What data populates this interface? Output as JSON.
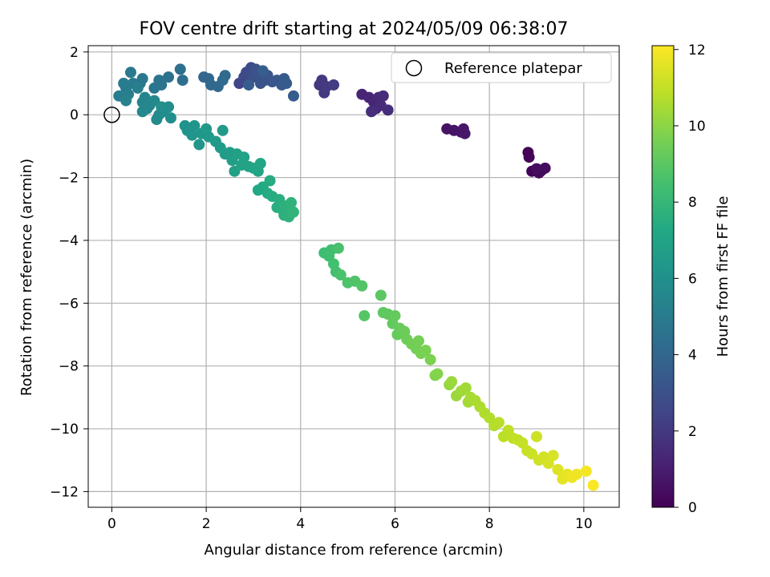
{
  "chart_data": {
    "type": "scatter",
    "title": "FOV centre drift starting at 2024/05/09 06:38:07",
    "xlabel": "Angular distance from reference (arcmin)",
    "ylabel": "Rotation from reference (arcmin)",
    "xlim": [
      -0.5,
      10.75
    ],
    "ylim": [
      -12.5,
      2.2
    ],
    "xticks": [
      0,
      2,
      4,
      6,
      8,
      10
    ],
    "yticks": [
      2,
      0,
      -2,
      -4,
      -6,
      -8,
      -10,
      -12
    ],
    "xtick_labels": [
      "0",
      "2",
      "4",
      "6",
      "8",
      "10"
    ],
    "ytick_labels": [
      "2",
      "0",
      "−2",
      "−4",
      "−6",
      "−8",
      "−10",
      "−12"
    ],
    "grid": true,
    "legend": {
      "placement": "top-right",
      "entries": [
        "Reference platepar"
      ]
    },
    "reference_point": {
      "x": 0,
      "y": 0,
      "name": "Reference platepar"
    },
    "colorbar": {
      "label": "Hours from first FF file",
      "range": [
        0,
        12.1
      ],
      "ticks": [
        0,
        2,
        4,
        6,
        8,
        10,
        12
      ],
      "tick_labels": [
        "0",
        "2",
        "4",
        "6",
        "8",
        "10",
        "12"
      ],
      "colormap": "viridis"
    },
    "points": [
      {
        "x": 8.82,
        "y": -1.2,
        "c": 0.05
      },
      {
        "x": 8.84,
        "y": -1.35,
        "c": 0.1
      },
      {
        "x": 8.9,
        "y": -1.8,
        "c": 0.15
      },
      {
        "x": 8.98,
        "y": -1.75,
        "c": 0.2
      },
      {
        "x": 9.05,
        "y": -1.85,
        "c": 0.25
      },
      {
        "x": 9.1,
        "y": -1.78,
        "c": 0.3
      },
      {
        "x": 9.18,
        "y": -1.7,
        "c": 0.35
      },
      {
        "x": 9.0,
        "y": -1.72,
        "c": 0.4
      },
      {
        "x": 7.1,
        "y": -0.45,
        "c": 0.6
      },
      {
        "x": 7.25,
        "y": -0.5,
        "c": 0.65
      },
      {
        "x": 7.4,
        "y": -0.55,
        "c": 0.7
      },
      {
        "x": 7.45,
        "y": -0.45,
        "c": 0.75
      },
      {
        "x": 7.48,
        "y": -0.6,
        "c": 0.8
      },
      {
        "x": 5.3,
        "y": 0.65,
        "c": 1.2
      },
      {
        "x": 5.45,
        "y": 0.55,
        "c": 1.25
      },
      {
        "x": 5.55,
        "y": 0.4,
        "c": 1.3
      },
      {
        "x": 5.6,
        "y": 0.2,
        "c": 1.35
      },
      {
        "x": 5.65,
        "y": 0.55,
        "c": 1.4
      },
      {
        "x": 5.7,
        "y": 0.3,
        "c": 1.45
      },
      {
        "x": 5.75,
        "y": 0.6,
        "c": 1.5
      },
      {
        "x": 5.85,
        "y": 0.15,
        "c": 1.55
      },
      {
        "x": 5.5,
        "y": 0.1,
        "c": 1.6
      },
      {
        "x": 4.4,
        "y": 0.95,
        "c": 1.9
      },
      {
        "x": 4.45,
        "y": 1.1,
        "c": 1.95
      },
      {
        "x": 4.5,
        "y": 0.7,
        "c": 2.0
      },
      {
        "x": 4.55,
        "y": 0.9,
        "c": 2.05
      },
      {
        "x": 4.7,
        "y": 0.95,
        "c": 2.1
      },
      {
        "x": 2.7,
        "y": 1.0,
        "c": 2.5
      },
      {
        "x": 2.8,
        "y": 1.2,
        "c": 2.6
      },
      {
        "x": 2.85,
        "y": 1.35,
        "c": 2.7
      },
      {
        "x": 2.95,
        "y": 1.5,
        "c": 2.8
      },
      {
        "x": 3.0,
        "y": 1.2,
        "c": 2.9
      },
      {
        "x": 3.05,
        "y": 1.45,
        "c": 3.0
      },
      {
        "x": 3.1,
        "y": 1.3,
        "c": 3.05
      },
      {
        "x": 3.15,
        "y": 1.0,
        "c": 3.1
      },
      {
        "x": 3.25,
        "y": 1.1,
        "c": 3.15
      },
      {
        "x": 3.3,
        "y": 1.25,
        "c": 3.2
      },
      {
        "x": 3.4,
        "y": 1.05,
        "c": 3.25
      },
      {
        "x": 3.5,
        "y": 1.1,
        "c": 3.3
      },
      {
        "x": 3.6,
        "y": 0.95,
        "c": 3.35
      },
      {
        "x": 3.65,
        "y": 1.15,
        "c": 3.4
      },
      {
        "x": 3.7,
        "y": 1.0,
        "c": 3.45
      },
      {
        "x": 3.85,
        "y": 0.6,
        "c": 3.5
      },
      {
        "x": 2.9,
        "y": 0.95,
        "c": 3.55
      },
      {
        "x": 3.2,
        "y": 1.4,
        "c": 3.6
      },
      {
        "x": 1.95,
        "y": 1.2,
        "c": 3.9
      },
      {
        "x": 2.05,
        "y": 1.15,
        "c": 4.0
      },
      {
        "x": 2.1,
        "y": 0.95,
        "c": 4.05
      },
      {
        "x": 2.25,
        "y": 0.9,
        "c": 4.1
      },
      {
        "x": 2.35,
        "y": 1.1,
        "c": 4.15
      },
      {
        "x": 2.4,
        "y": 1.25,
        "c": 4.2
      },
      {
        "x": 1.5,
        "y": 1.1,
        "c": 4.35
      },
      {
        "x": 1.45,
        "y": 1.45,
        "c": 4.4
      },
      {
        "x": 1.2,
        "y": 1.2,
        "c": 4.5
      },
      {
        "x": 1.0,
        "y": 1.1,
        "c": 4.6
      },
      {
        "x": 1.05,
        "y": 0.95,
        "c": 4.65
      },
      {
        "x": 0.9,
        "y": 0.85,
        "c": 4.7
      },
      {
        "x": 0.65,
        "y": 1.15,
        "c": 4.8
      },
      {
        "x": 0.6,
        "y": 1.0,
        "c": 4.85
      },
      {
        "x": 0.4,
        "y": 1.35,
        "c": 4.9
      },
      {
        "x": 0.45,
        "y": 1.0,
        "c": 4.95
      },
      {
        "x": 0.3,
        "y": 0.85,
        "c": 5.0
      },
      {
        "x": 0.25,
        "y": 1.0,
        "c": 5.05
      },
      {
        "x": 0.15,
        "y": 0.6,
        "c": 5.1
      },
      {
        "x": 0.35,
        "y": 0.65,
        "c": 5.15
      },
      {
        "x": 0.55,
        "y": 0.85,
        "c": 5.2
      },
      {
        "x": 0.3,
        "y": 0.45,
        "c": 5.3
      },
      {
        "x": 0.65,
        "y": 0.4,
        "c": 5.4
      },
      {
        "x": 0.7,
        "y": 0.55,
        "c": 5.45
      },
      {
        "x": 0.8,
        "y": 0.3,
        "c": 5.5
      },
      {
        "x": 0.75,
        "y": 0.2,
        "c": 5.55
      },
      {
        "x": 0.65,
        "y": 0.1,
        "c": 5.6
      },
      {
        "x": 0.9,
        "y": 0.45,
        "c": 5.65
      },
      {
        "x": 1.0,
        "y": 0.0,
        "c": 5.7
      },
      {
        "x": 0.95,
        "y": -0.15,
        "c": 5.75
      },
      {
        "x": 1.1,
        "y": 0.1,
        "c": 5.8
      },
      {
        "x": 1.2,
        "y": 0.25,
        "c": 5.85
      },
      {
        "x": 1.25,
        "y": -0.1,
        "c": 5.9
      },
      {
        "x": 1.05,
        "y": 0.25,
        "c": 5.95
      },
      {
        "x": 1.55,
        "y": -0.35,
        "c": 6.1
      },
      {
        "x": 1.6,
        "y": -0.5,
        "c": 6.15
      },
      {
        "x": 1.7,
        "y": -0.65,
        "c": 6.2
      },
      {
        "x": 1.75,
        "y": -0.35,
        "c": 6.25
      },
      {
        "x": 1.85,
        "y": -0.95,
        "c": 6.3
      },
      {
        "x": 1.9,
        "y": -0.6,
        "c": 6.35
      },
      {
        "x": 2.0,
        "y": -0.45,
        "c": 6.4
      },
      {
        "x": 2.05,
        "y": -0.7,
        "c": 6.45
      },
      {
        "x": 2.2,
        "y": -0.85,
        "c": 6.5
      },
      {
        "x": 2.3,
        "y": -1.05,
        "c": 6.55
      },
      {
        "x": 2.35,
        "y": -0.5,
        "c": 6.6
      },
      {
        "x": 2.4,
        "y": -1.25,
        "c": 6.65
      },
      {
        "x": 2.5,
        "y": -1.2,
        "c": 6.7
      },
      {
        "x": 2.55,
        "y": -1.45,
        "c": 6.75
      },
      {
        "x": 2.6,
        "y": -1.8,
        "c": 6.8
      },
      {
        "x": 2.65,
        "y": -1.25,
        "c": 6.85
      },
      {
        "x": 2.75,
        "y": -1.6,
        "c": 6.9
      },
      {
        "x": 2.8,
        "y": -1.35,
        "c": 6.95
      },
      {
        "x": 2.9,
        "y": -1.65,
        "c": 7.0
      },
      {
        "x": 3.0,
        "y": -1.7,
        "c": 7.05
      },
      {
        "x": 3.1,
        "y": -1.8,
        "c": 7.1
      },
      {
        "x": 3.15,
        "y": -1.55,
        "c": 7.15
      },
      {
        "x": 3.1,
        "y": -2.4,
        "c": 7.25
      },
      {
        "x": 3.2,
        "y": -2.3,
        "c": 7.3
      },
      {
        "x": 3.3,
        "y": -2.5,
        "c": 7.35
      },
      {
        "x": 3.35,
        "y": -2.1,
        "c": 7.4
      },
      {
        "x": 3.4,
        "y": -2.6,
        "c": 7.45
      },
      {
        "x": 3.5,
        "y": -2.95,
        "c": 7.5
      },
      {
        "x": 3.55,
        "y": -2.7,
        "c": 7.55
      },
      {
        "x": 3.6,
        "y": -3.0,
        "c": 7.6
      },
      {
        "x": 3.65,
        "y": -3.2,
        "c": 7.65
      },
      {
        "x": 3.7,
        "y": -2.9,
        "c": 7.7
      },
      {
        "x": 3.75,
        "y": -3.25,
        "c": 7.75
      },
      {
        "x": 3.8,
        "y": -2.8,
        "c": 7.8
      },
      {
        "x": 3.85,
        "y": -3.1,
        "c": 7.85
      },
      {
        "x": 4.5,
        "y": -4.4,
        "c": 8.3
      },
      {
        "x": 4.6,
        "y": -4.5,
        "c": 8.35
      },
      {
        "x": 4.65,
        "y": -4.3,
        "c": 8.4
      },
      {
        "x": 4.7,
        "y": -4.75,
        "c": 8.45
      },
      {
        "x": 4.75,
        "y": -5.0,
        "c": 8.5
      },
      {
        "x": 4.8,
        "y": -4.25,
        "c": 8.55
      },
      {
        "x": 4.85,
        "y": -5.1,
        "c": 8.6
      },
      {
        "x": 5.0,
        "y": -5.35,
        "c": 8.7
      },
      {
        "x": 5.15,
        "y": -5.3,
        "c": 8.75
      },
      {
        "x": 5.3,
        "y": -5.45,
        "c": 8.8
      },
      {
        "x": 5.35,
        "y": -6.4,
        "c": 8.85
      },
      {
        "x": 5.7,
        "y": -5.75,
        "c": 9.0
      },
      {
        "x": 5.75,
        "y": -6.3,
        "c": 9.05
      },
      {
        "x": 5.85,
        "y": -6.35,
        "c": 9.1
      },
      {
        "x": 5.95,
        "y": -6.65,
        "c": 9.15
      },
      {
        "x": 6.0,
        "y": -6.4,
        "c": 9.2
      },
      {
        "x": 6.05,
        "y": -7.0,
        "c": 9.25
      },
      {
        "x": 6.1,
        "y": -6.8,
        "c": 9.3
      },
      {
        "x": 6.2,
        "y": -6.9,
        "c": 9.35
      },
      {
        "x": 6.25,
        "y": -7.15,
        "c": 9.4
      },
      {
        "x": 6.35,
        "y": -7.3,
        "c": 9.45
      },
      {
        "x": 6.45,
        "y": -7.45,
        "c": 9.5
      },
      {
        "x": 6.5,
        "y": -7.2,
        "c": 9.55
      },
      {
        "x": 6.55,
        "y": -7.6,
        "c": 9.6
      },
      {
        "x": 6.65,
        "y": -7.5,
        "c": 9.65
      },
      {
        "x": 6.75,
        "y": -7.8,
        "c": 9.7
      },
      {
        "x": 6.85,
        "y": -8.3,
        "c": 9.8
      },
      {
        "x": 6.9,
        "y": -8.25,
        "c": 9.85
      },
      {
        "x": 7.15,
        "y": -8.6,
        "c": 10.2
      },
      {
        "x": 7.2,
        "y": -8.5,
        "c": 10.25
      },
      {
        "x": 7.3,
        "y": -8.95,
        "c": 10.3
      },
      {
        "x": 7.4,
        "y": -8.8,
        "c": 10.35
      },
      {
        "x": 7.5,
        "y": -8.7,
        "c": 10.4
      },
      {
        "x": 7.55,
        "y": -9.15,
        "c": 10.45
      },
      {
        "x": 7.6,
        "y": -9.0,
        "c": 10.5
      },
      {
        "x": 7.7,
        "y": -9.1,
        "c": 10.55
      },
      {
        "x": 7.8,
        "y": -9.3,
        "c": 10.6
      },
      {
        "x": 7.9,
        "y": -9.5,
        "c": 10.65
      },
      {
        "x": 8.0,
        "y": -9.65,
        "c": 10.7
      },
      {
        "x": 8.1,
        "y": -9.9,
        "c": 10.75
      },
      {
        "x": 8.2,
        "y": -9.8,
        "c": 10.8
      },
      {
        "x": 8.3,
        "y": -10.25,
        "c": 10.85
      },
      {
        "x": 8.4,
        "y": -10.05,
        "c": 10.9
      },
      {
        "x": 8.5,
        "y": -10.3,
        "c": 10.95
      },
      {
        "x": 8.6,
        "y": -10.35,
        "c": 11.0
      },
      {
        "x": 8.7,
        "y": -10.45,
        "c": 11.05
      },
      {
        "x": 8.8,
        "y": -10.7,
        "c": 11.1
      },
      {
        "x": 8.9,
        "y": -10.8,
        "c": 11.15
      },
      {
        "x": 9.0,
        "y": -10.25,
        "c": 11.2
      },
      {
        "x": 9.05,
        "y": -11.0,
        "c": 11.25
      },
      {
        "x": 9.15,
        "y": -10.9,
        "c": 11.3
      },
      {
        "x": 9.25,
        "y": -11.1,
        "c": 11.35
      },
      {
        "x": 9.35,
        "y": -10.85,
        "c": 11.4
      },
      {
        "x": 9.45,
        "y": -11.3,
        "c": 11.5
      },
      {
        "x": 9.55,
        "y": -11.6,
        "c": 11.6
      },
      {
        "x": 9.65,
        "y": -11.45,
        "c": 11.7
      },
      {
        "x": 9.75,
        "y": -11.55,
        "c": 11.8
      },
      {
        "x": 9.85,
        "y": -11.45,
        "c": 11.85
      },
      {
        "x": 10.05,
        "y": -11.35,
        "c": 11.95
      },
      {
        "x": 10.2,
        "y": -11.8,
        "c": 12.05
      }
    ]
  }
}
